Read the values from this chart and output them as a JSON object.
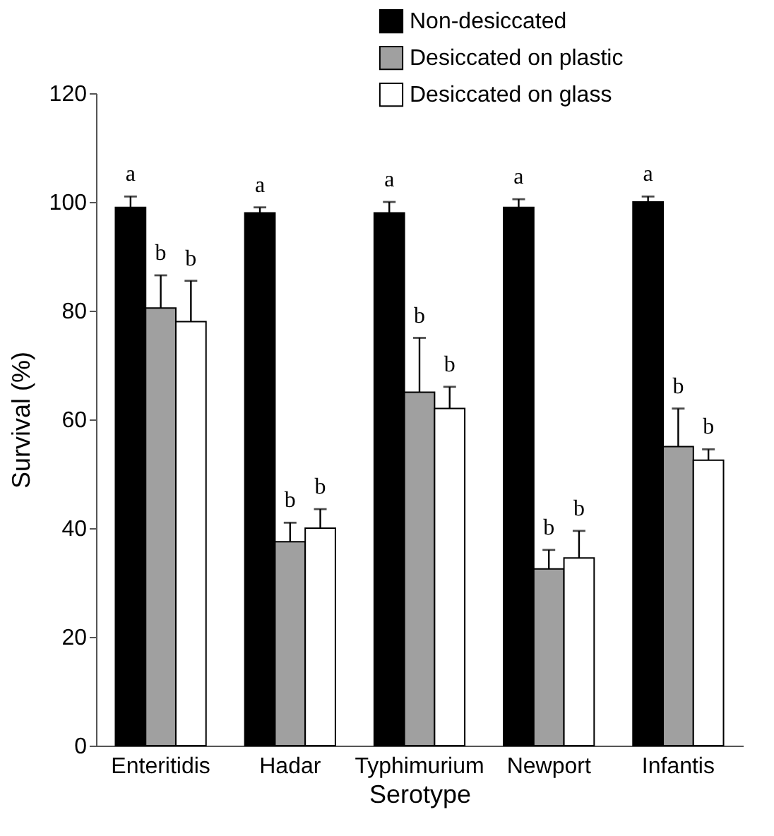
{
  "chart_data": {
    "type": "bar",
    "xlabel": "Serotype",
    "ylabel": "Survival (%)",
    "categories": [
      "Enteritidis",
      "Hadar",
      "Typhimurium",
      "Newport",
      "Infantis"
    ],
    "series": [
      {
        "name": "Non-desiccated",
        "color": "#000000",
        "values": [
          99,
          98,
          98,
          99,
          100
        ],
        "errors": [
          [
            99,
            101
          ],
          [
            98,
            99
          ],
          [
            98,
            100
          ],
          [
            99,
            100.5
          ],
          [
            100,
            101
          ]
        ],
        "value_labels": [
          "a",
          "a",
          "a",
          "a",
          "a"
        ]
      },
      {
        "name": "Desiccated on plastic",
        "color": "#a0a0a0",
        "values": [
          80.5,
          37.5,
          65,
          32.5,
          55
        ],
        "errors": [
          [
            80.5,
            86.5
          ],
          [
            37.5,
            41
          ],
          [
            65,
            75
          ],
          [
            32.5,
            36
          ],
          [
            55,
            62
          ]
        ],
        "value_labels": [
          "b",
          "b",
          "b",
          "b",
          "b"
        ]
      },
      {
        "name": "Desiccated on glass",
        "color": "#ffffff",
        "values": [
          78,
          40,
          62,
          34.5,
          52.5
        ],
        "errors": [
          [
            78,
            85.5
          ],
          [
            40,
            43.5
          ],
          [
            62,
            66
          ],
          [
            34.5,
            39.5
          ],
          [
            52.5,
            54.5
          ]
        ],
        "value_labels": [
          "b",
          "b",
          "b",
          "b",
          "b"
        ]
      }
    ],
    "ylim": [
      0,
      120
    ],
    "yticks": [
      0,
      20,
      40,
      60,
      80,
      100,
      120
    ],
    "grid": false,
    "legend": "top right"
  }
}
